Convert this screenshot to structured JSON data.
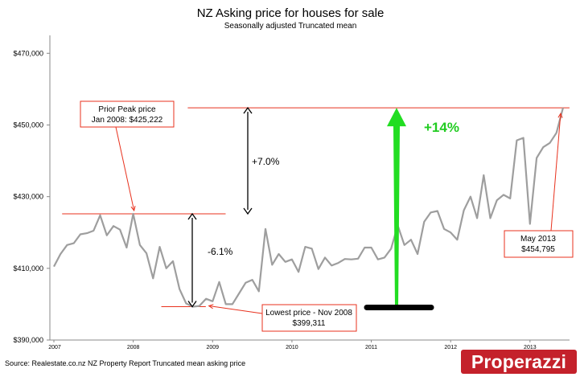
{
  "chart_data": {
    "type": "line",
    "title": "NZ Asking price for houses for sale",
    "subtitle": "Seasonally adjusted Truncated mean",
    "xlabel": "",
    "ylabel": "",
    "ylim": [
      390000,
      475000
    ],
    "y_ticks": [
      {
        "value": 390000,
        "label": "$390,000"
      },
      {
        "value": 410000,
        "label": "$410,000"
      },
      {
        "value": 430000,
        "label": "$430,000"
      },
      {
        "value": 450000,
        "label": "$450,000"
      },
      {
        "value": 470000,
        "label": "$470,000"
      }
    ],
    "x_ticks": [
      {
        "index": 0,
        "label": "2007"
      },
      {
        "index": 12,
        "label": "2008"
      },
      {
        "index": 24,
        "label": "2009"
      },
      {
        "index": 36,
        "label": "2010"
      },
      {
        "index": 48,
        "label": "2011"
      },
      {
        "index": 60,
        "label": "2012"
      },
      {
        "index": 72,
        "label": "2013"
      }
    ],
    "series": [
      {
        "name": "Asking price",
        "color": "#9e9e9e",
        "values": [
          410500,
          414000,
          416500,
          417000,
          419500,
          419800,
          420500,
          424800,
          419200,
          421800,
          420800,
          415800,
          425222,
          416500,
          414200,
          407200,
          416000,
          410000,
          412000,
          404200,
          400200,
          399311,
          399500,
          401500,
          400800,
          406200,
          400000,
          400000,
          403000,
          406000,
          406800,
          403600,
          421000,
          411000,
          414000,
          411800,
          412500,
          409000,
          416000,
          415500,
          409800,
          413000,
          410800,
          411500,
          412600,
          412500,
          412700,
          415800,
          415800,
          412500,
          413000,
          415500,
          422000,
          416500,
          418000,
          414000,
          423000,
          425600,
          426000,
          421000,
          420000,
          418000,
          426200,
          430000,
          424000,
          436000,
          424000,
          429000,
          430500,
          429500,
          445700,
          446400,
          422400,
          440800,
          443800,
          445000,
          447800,
          454795
        ]
      }
    ],
    "reference_lines": [
      {
        "name": "prior-peak-line",
        "value": 425222,
        "from_index": 1,
        "to_index": 25
      },
      {
        "name": "lowest-price-line",
        "value": 399311,
        "from_index": 16,
        "to_index": 22
      },
      {
        "name": "latest-peak-line",
        "value": 454795,
        "from_index": 20,
        "to_index": 77
      }
    ],
    "annotations": {
      "prior_peak": {
        "line1": "Prior Peak price",
        "line2": "Jan 2008: $425,222",
        "point_index": 12
      },
      "lowest": {
        "line1": "Lowest price - Nov 2008",
        "line2": "$399,311",
        "point_index": 21
      },
      "latest": {
        "line1": "May 2013",
        "line2": "$454,795",
        "point_index": 77
      },
      "rise_1": {
        "label": "+7.0%"
      },
      "fall_1": {
        "label": "-6.1%"
      },
      "rise_total": {
        "label": "+14%"
      }
    },
    "grid": false
  },
  "source": "Source: Realestate.co.nz NZ Property Report Truncated mean asking price",
  "brand": "Properazzi",
  "colors": {
    "line": "#9e9e9e",
    "axis": "#888888",
    "annotation_red": "#e8321e",
    "big_arrow": "#22dd22",
    "big_arrow_label": "#22cc22",
    "brand_bg": "#c4212b"
  }
}
